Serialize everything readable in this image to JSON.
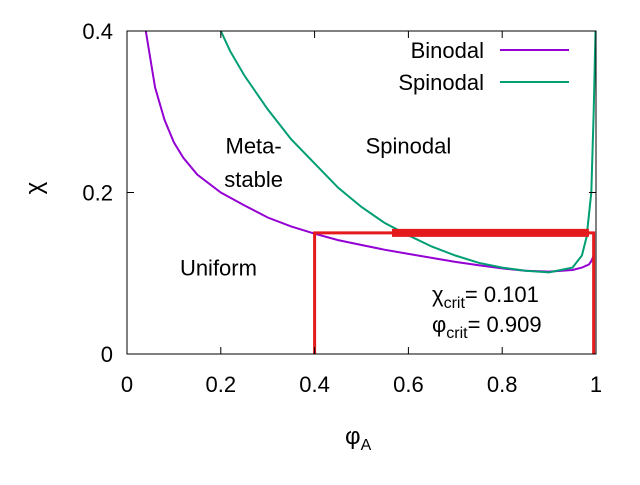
{
  "chart_data": {
    "type": "line",
    "x_axis": {
      "symbol": "φ",
      "subscript": "A",
      "range": [
        0,
        1
      ],
      "ticks": [
        "0",
        "0.2",
        "0.4",
        "0.6",
        "0.8",
        "1"
      ]
    },
    "y_axis": {
      "symbol": "χ",
      "range": [
        0,
        0.4
      ],
      "ticks": [
        "0",
        "0.2",
        "0.4"
      ]
    },
    "grid": false,
    "legend_position": "top-right",
    "series": [
      {
        "name": "Binodal",
        "color": "#9400D3",
        "x": [
          0.04,
          0.06,
          0.08,
          0.1,
          0.12,
          0.15,
          0.2,
          0.25,
          0.3,
          0.35,
          0.4,
          0.45,
          0.5,
          0.55,
          0.6,
          0.65,
          0.7,
          0.75,
          0.8,
          0.85,
          0.9,
          0.95,
          0.97,
          0.985,
          0.99,
          0.995
        ],
        "y": [
          0.4,
          0.33,
          0.29,
          0.262,
          0.243,
          0.222,
          0.2,
          0.184,
          0.169,
          0.158,
          0.149,
          0.141,
          0.135,
          0.129,
          0.124,
          0.119,
          0.114,
          0.11,
          0.106,
          0.103,
          0.102,
          0.104,
          0.107,
          0.111,
          0.115,
          0.122
        ]
      },
      {
        "name": "Spinodal",
        "color": "#009E73",
        "x": [
          0.2,
          0.22,
          0.25,
          0.3,
          0.35,
          0.4,
          0.45,
          0.5,
          0.55,
          0.6,
          0.65,
          0.7,
          0.75,
          0.8,
          0.85,
          0.9,
          0.95,
          0.97,
          0.98,
          0.99,
          0.995,
          0.999
        ],
        "y": [
          0.4,
          0.375,
          0.345,
          0.303,
          0.266,
          0.236,
          0.206,
          0.182,
          0.162,
          0.147,
          0.133,
          0.122,
          0.113,
          0.107,
          0.103,
          0.101,
          0.107,
          0.122,
          0.145,
          0.2,
          0.3,
          0.4
        ]
      }
    ],
    "red_box": {
      "color": "#E41A1C",
      "left_x": 0.4,
      "right_x": 0.995,
      "y": 0.15
    },
    "thick_red_segment": {
      "color": "#E41A1C",
      "x": [
        0.565,
        0.985
      ],
      "y": 0.15
    },
    "region_labels": [
      {
        "text": "Meta-",
        "x": 0.27,
        "y": 0.248
      },
      {
        "text": "stable",
        "x": 0.27,
        "y": 0.207
      },
      {
        "text": "Spinodal",
        "x": 0.6,
        "y": 0.248
      },
      {
        "text": "Uniform",
        "x": 0.195,
        "y": 0.097
      }
    ],
    "annotations": [
      {
        "symbol": "χ",
        "subscript": "crit",
        "text": "= 0.101"
      },
      {
        "symbol": "φ",
        "subscript": "crit",
        "text": "= 0.909"
      }
    ]
  }
}
